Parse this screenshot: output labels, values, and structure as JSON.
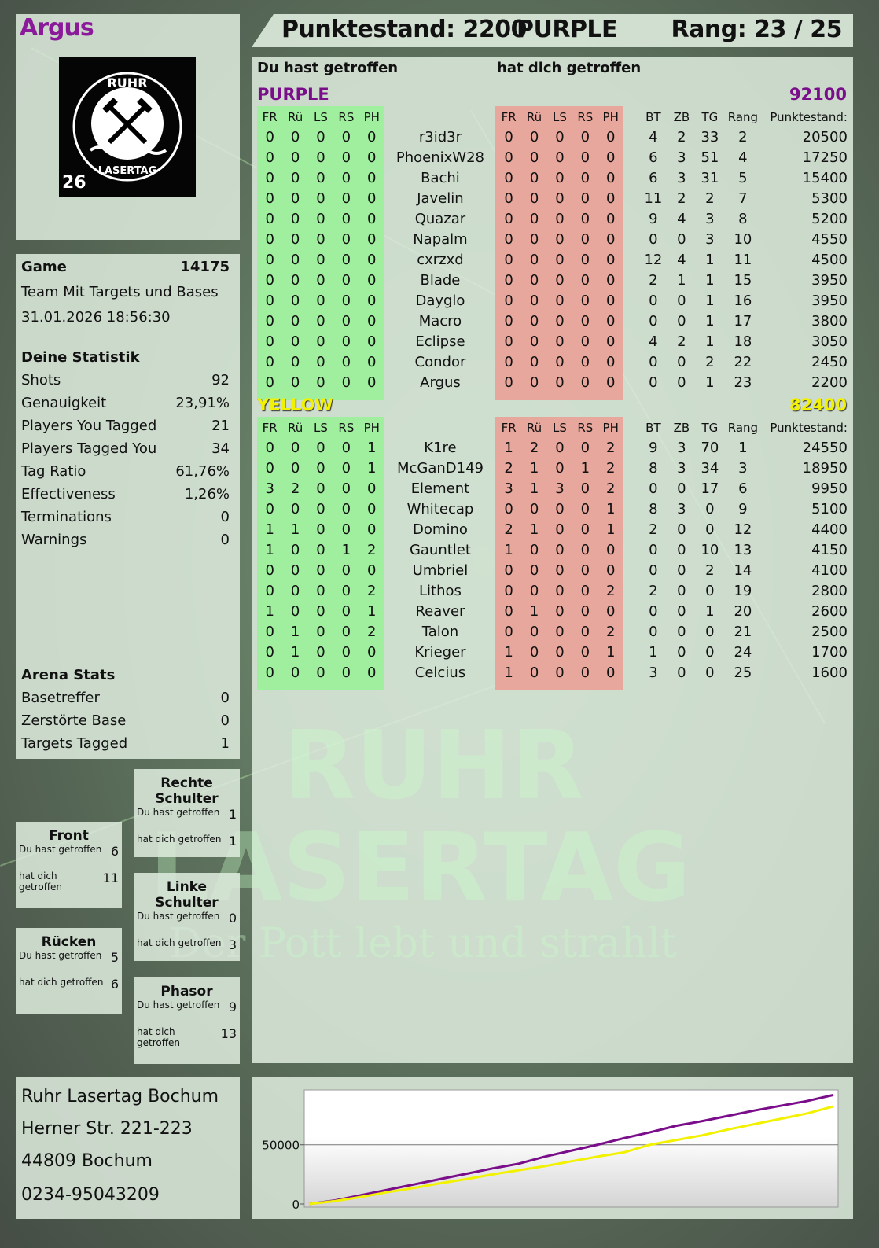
{
  "player": "Argus",
  "logo": {
    "text_top": "RUHR",
    "text_bottom": "LASERTAG",
    "badge": "26"
  },
  "header": {
    "score_label": "Punktestand: 2200",
    "team": "PURPLE",
    "rank": "Rang: 23 / 25"
  },
  "watermark": {
    "line1": "RUHR",
    "line2": "LASERTAG",
    "tagline": "Der Pott lebt und strahlt"
  },
  "game": {
    "label": "Game",
    "id": "14175",
    "mode": "Team Mit Targets und Bases",
    "datetime": "31.01.2026 18:56:30"
  },
  "stats": {
    "title": "Deine Statistik",
    "items": [
      {
        "label": "Shots",
        "value": "92"
      },
      {
        "label": "Genauigkeit",
        "value": "23,91%"
      },
      {
        "label": "Players You Tagged",
        "value": "21"
      },
      {
        "label": "Players Tagged You",
        "value": "34"
      },
      {
        "label": "Tag Ratio",
        "value": "61,76%"
      },
      {
        "label": "Effectiveness",
        "value": "1,26%"
      },
      {
        "label": "Terminations",
        "value": "0"
      },
      {
        "label": "Warnings",
        "value": "0"
      }
    ]
  },
  "arena": {
    "title": "Arena Stats",
    "items": [
      {
        "label": "Basetreffer",
        "value": "0"
      },
      {
        "label": "Zerstörte Base",
        "value": "0"
      },
      {
        "label": "Targets Tagged",
        "value": "1"
      }
    ]
  },
  "zones": [
    {
      "title": "Rechte Schulter",
      "you_hit_label": "Du hast getroffen",
      "you_hit": "1",
      "hit_you_label": "hat dich getroffen",
      "hit_you": "1"
    },
    {
      "title": "Front",
      "you_hit_label": "Du hast getroffen",
      "you_hit": "6",
      "hit_you_label": "hat dich getroffen",
      "hit_you": "11"
    },
    {
      "title": "Linke Schulter",
      "you_hit_label": "Du hast getroffen",
      "you_hit": "0",
      "hit_you_label": "hat dich getroffen",
      "hit_you": "3"
    },
    {
      "title": "Rücken",
      "you_hit_label": "Du hast getroffen",
      "you_hit": "5",
      "hit_you_label": "hat dich getroffen",
      "hit_you": "6"
    },
    {
      "title": "Phasor",
      "you_hit_label": "Du hast getroffen",
      "you_hit": "9",
      "hit_you_label": "hat dich getroffen",
      "hit_you": "13"
    }
  ],
  "address": [
    "Ruhr Lasertag Bochum",
    "Herner Str. 221-223",
    "44809 Bochum",
    "0234-95043209"
  ],
  "table": {
    "you_hit_title": "Du hast getroffen",
    "hit_you_title": "hat dich getroffen",
    "hit_cols": [
      "FR",
      "Rü",
      "LS",
      "RS",
      "PH"
    ],
    "stat_cols": [
      "BT",
      "ZB",
      "TG",
      "Rang"
    ],
    "score_col": "Punktestand:",
    "teams": [
      {
        "name": "PURPLE",
        "total": "92100",
        "color": "#7a0d8a",
        "rows": [
          [
            "r3id3r",
            [
              0,
              0,
              0,
              0,
              0
            ],
            [
              0,
              0,
              0,
              0,
              0
            ],
            4,
            2,
            33,
            2,
            20500
          ],
          [
            "PhoenixW28",
            [
              0,
              0,
              0,
              0,
              0
            ],
            [
              0,
              0,
              0,
              0,
              0
            ],
            6,
            3,
            51,
            4,
            17250
          ],
          [
            "Bachi",
            [
              0,
              0,
              0,
              0,
              0
            ],
            [
              0,
              0,
              0,
              0,
              0
            ],
            6,
            3,
            31,
            5,
            15400
          ],
          [
            "Javelin",
            [
              0,
              0,
              0,
              0,
              0
            ],
            [
              0,
              0,
              0,
              0,
              0
            ],
            11,
            2,
            2,
            7,
            5300
          ],
          [
            "Quazar",
            [
              0,
              0,
              0,
              0,
              0
            ],
            [
              0,
              0,
              0,
              0,
              0
            ],
            9,
            4,
            3,
            8,
            5200
          ],
          [
            "Napalm",
            [
              0,
              0,
              0,
              0,
              0
            ],
            [
              0,
              0,
              0,
              0,
              0
            ],
            0,
            0,
            3,
            10,
            4550
          ],
          [
            "cxrzxd",
            [
              0,
              0,
              0,
              0,
              0
            ],
            [
              0,
              0,
              0,
              0,
              0
            ],
            12,
            4,
            1,
            11,
            4500
          ],
          [
            "Blade",
            [
              0,
              0,
              0,
              0,
              0
            ],
            [
              0,
              0,
              0,
              0,
              0
            ],
            2,
            1,
            1,
            15,
            3950
          ],
          [
            "Dayglo",
            [
              0,
              0,
              0,
              0,
              0
            ],
            [
              0,
              0,
              0,
              0,
              0
            ],
            0,
            0,
            1,
            16,
            3950
          ],
          [
            "Macro",
            [
              0,
              0,
              0,
              0,
              0
            ],
            [
              0,
              0,
              0,
              0,
              0
            ],
            0,
            0,
            1,
            17,
            3800
          ],
          [
            "Eclipse",
            [
              0,
              0,
              0,
              0,
              0
            ],
            [
              0,
              0,
              0,
              0,
              0
            ],
            4,
            2,
            1,
            18,
            3050
          ],
          [
            "Condor",
            [
              0,
              0,
              0,
              0,
              0
            ],
            [
              0,
              0,
              0,
              0,
              0
            ],
            0,
            0,
            2,
            22,
            2450
          ],
          [
            "Argus",
            [
              0,
              0,
              0,
              0,
              0
            ],
            [
              0,
              0,
              0,
              0,
              0
            ],
            0,
            0,
            1,
            23,
            2200
          ]
        ]
      },
      {
        "name": "YELLOW",
        "total": "82400",
        "color": "#f2f200",
        "rows": [
          [
            "K1re",
            [
              0,
              0,
              0,
              0,
              1
            ],
            [
              1,
              2,
              0,
              0,
              2
            ],
            9,
            3,
            70,
            1,
            24550
          ],
          [
            "McGanD149",
            [
              0,
              0,
              0,
              0,
              1
            ],
            [
              2,
              1,
              0,
              1,
              2
            ],
            8,
            3,
            34,
            3,
            18950
          ],
          [
            "Element",
            [
              3,
              2,
              0,
              0,
              0
            ],
            [
              3,
              1,
              3,
              0,
              2
            ],
            0,
            0,
            17,
            6,
            9950
          ],
          [
            "Whitecap",
            [
              0,
              0,
              0,
              0,
              0
            ],
            [
              0,
              0,
              0,
              0,
              1
            ],
            8,
            3,
            0,
            9,
            5100
          ],
          [
            "Domino",
            [
              1,
              1,
              0,
              0,
              0
            ],
            [
              2,
              1,
              0,
              0,
              1
            ],
            2,
            0,
            0,
            12,
            4400
          ],
          [
            "Gauntlet",
            [
              1,
              0,
              0,
              1,
              2
            ],
            [
              1,
              0,
              0,
              0,
              0
            ],
            0,
            0,
            10,
            13,
            4150
          ],
          [
            "Umbriel",
            [
              0,
              0,
              0,
              0,
              0
            ],
            [
              0,
              0,
              0,
              0,
              0
            ],
            0,
            0,
            2,
            14,
            4100
          ],
          [
            "Lithos",
            [
              0,
              0,
              0,
              0,
              2
            ],
            [
              0,
              0,
              0,
              0,
              2
            ],
            2,
            0,
            0,
            19,
            2800
          ],
          [
            "Reaver",
            [
              1,
              0,
              0,
              0,
              1
            ],
            [
              0,
              1,
              0,
              0,
              0
            ],
            0,
            0,
            1,
            20,
            2600
          ],
          [
            "Talon",
            [
              0,
              1,
              0,
              0,
              2
            ],
            [
              0,
              0,
              0,
              0,
              2
            ],
            0,
            0,
            0,
            21,
            2500
          ],
          [
            "Krieger",
            [
              0,
              1,
              0,
              0,
              0
            ],
            [
              1,
              0,
              0,
              0,
              1
            ],
            1,
            0,
            0,
            24,
            1700
          ],
          [
            "Celcius",
            [
              0,
              0,
              0,
              0,
              0
            ],
            [
              1,
              0,
              0,
              0,
              0
            ],
            3,
            0,
            0,
            25,
            1600
          ]
        ]
      }
    ]
  },
  "colors": {
    "you_hit_band": "#9fef9f",
    "hit_you_band": "#e8a79c"
  },
  "chart_data": {
    "type": "line",
    "ylim": [
      0,
      95000
    ],
    "yticks": [
      0,
      50000
    ],
    "grid": true,
    "x": [
      0,
      1,
      2,
      3,
      4,
      5,
      6,
      7,
      8,
      9,
      10,
      11,
      12,
      13,
      14,
      15,
      16,
      17,
      18,
      19,
      20
    ],
    "series": [
      {
        "color": "#7a0d8a",
        "values": [
          0,
          3000,
          7500,
          12000,
          16500,
          21000,
          25500,
          30000,
          34000,
          40000,
          45000,
          50000,
          55500,
          60500,
          66000,
          70000,
          74500,
          79000,
          83000,
          87000,
          92100
        ]
      },
      {
        "color": "#f2f200",
        "values": [
          0,
          2500,
          6000,
          10000,
          13500,
          17500,
          21000,
          25000,
          28500,
          32000,
          36000,
          40000,
          43500,
          50000,
          54000,
          58000,
          63000,
          67500,
          72000,
          76500,
          82400
        ]
      }
    ]
  }
}
